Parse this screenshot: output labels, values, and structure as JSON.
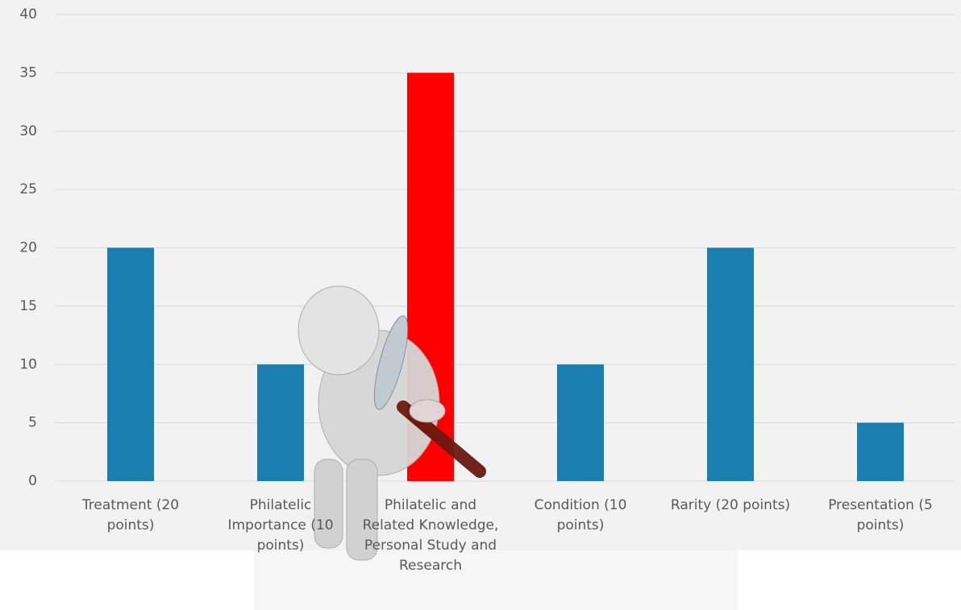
{
  "chart_data": {
    "type": "bar",
    "categories": [
      "Treatment (20 points)",
      "Philatelic Importance (10 points)",
      "Philatelic and Related Knowledge, Personal Study and Research",
      "Condition (10 points)",
      "Rarity (20 points)",
      "Presentation (5 points)"
    ],
    "values": [
      20,
      10,
      35,
      10,
      20,
      5
    ],
    "colors": [
      "#1a7fb0",
      "#1a7fb0",
      "#ff0000",
      "#1a7fb0",
      "#1a7fb0",
      "#1a7fb0"
    ],
    "ylim": [
      0,
      40
    ],
    "yticks": [
      0,
      5,
      10,
      15,
      20,
      25,
      30,
      35,
      40
    ],
    "grid": true
  }
}
